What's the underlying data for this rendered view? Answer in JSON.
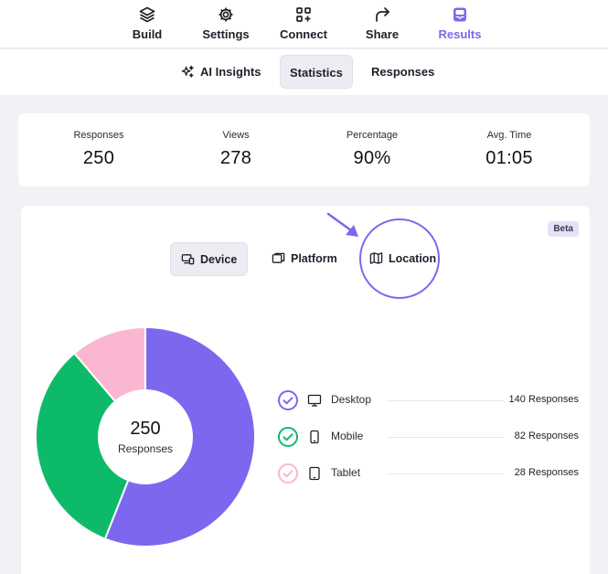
{
  "nav": {
    "items": [
      {
        "label": "Build",
        "icon": "layers-icon"
      },
      {
        "label": "Settings",
        "icon": "gear-icon"
      },
      {
        "label": "Connect",
        "icon": "apps-add-icon"
      },
      {
        "label": "Share",
        "icon": "share-arrow-icon"
      },
      {
        "label": "Results",
        "icon": "inbox-icon"
      }
    ],
    "active": "Results",
    "accent": "#7b68ee"
  },
  "subtabs": {
    "items": [
      {
        "label": "AI Insights",
        "icon": "sparkles-icon"
      },
      {
        "label": "Statistics"
      },
      {
        "label": "Responses"
      }
    ],
    "active": "Statistics"
  },
  "stats": [
    {
      "title": "Responses",
      "value": "250"
    },
    {
      "title": "Views",
      "value": "278"
    },
    {
      "title": "Percentage",
      "value": "90%"
    },
    {
      "title": "Avg. Time",
      "value": "01:05"
    }
  ],
  "breakdown": {
    "badge": "Beta",
    "segments": [
      {
        "label": "Device",
        "icon": "devices-icon"
      },
      {
        "label": "Platform",
        "icon": "windows-icon"
      },
      {
        "label": "Location",
        "icon": "map-icon"
      }
    ],
    "active": "Device"
  },
  "chart_data": {
    "type": "pie",
    "title": "",
    "center_value": "250",
    "center_label": "Responses",
    "categories": [
      "Desktop",
      "Mobile",
      "Tablet"
    ],
    "values": [
      140,
      82,
      28
    ],
    "colors": [
      "#7b68ee",
      "#0dba6a",
      "#fbb6d2"
    ],
    "legend": [
      {
        "name": "Desktop",
        "count_label": "140 Responses",
        "icon": "desktop-icon"
      },
      {
        "name": "Mobile",
        "count_label": "82 Responses",
        "icon": "mobile-icon"
      },
      {
        "name": "Tablet",
        "count_label": "28 Responses",
        "icon": "tablet-icon"
      }
    ]
  }
}
